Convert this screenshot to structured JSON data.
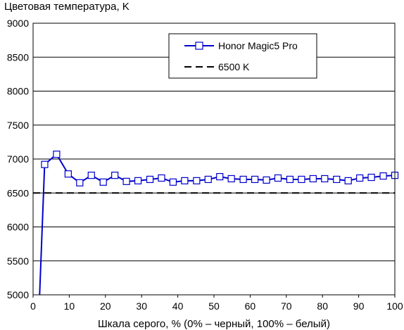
{
  "chart_data": {
    "type": "line",
    "title": "",
    "ylabel": "Цветовая температура, K",
    "xlabel": "Шкала серого, % (0% – черный, 100% – белый)",
    "xlim": [
      0,
      100
    ],
    "ylim": [
      5000,
      9000
    ],
    "x_ticks": [
      0,
      10,
      20,
      30,
      40,
      50,
      60,
      70,
      80,
      90,
      100
    ],
    "y_ticks": [
      5000,
      5500,
      6000,
      6500,
      7000,
      7500,
      8000,
      8500,
      9000
    ],
    "grid": "horizontal",
    "legend_position": "top-right",
    "series": [
      {
        "name": "Honor Magic5 Pro",
        "color": "#0000cc",
        "marker": "open-square",
        "x": [
          1.8,
          3.2,
          6.5,
          9.7,
          12.9,
          16.1,
          19.4,
          22.6,
          25.8,
          29.0,
          32.3,
          35.5,
          38.7,
          41.9,
          45.2,
          48.4,
          51.6,
          54.8,
          58.1,
          61.3,
          64.5,
          67.7,
          71.0,
          74.2,
          77.4,
          80.6,
          83.9,
          87.1,
          90.3,
          93.5,
          96.8,
          100
        ],
        "y": [
          5000,
          6920,
          7070,
          6780,
          6650,
          6760,
          6660,
          6760,
          6670,
          6680,
          6700,
          6720,
          6660,
          6680,
          6680,
          6700,
          6740,
          6710,
          6700,
          6700,
          6690,
          6720,
          6700,
          6700,
          6710,
          6710,
          6700,
          6680,
          6720,
          6730,
          6750,
          6760
        ],
        "marker_from_index": 1
      },
      {
        "name": "6500 K",
        "color": "#000000",
        "style": "dashed",
        "x": [
          0,
          100
        ],
        "y": [
          6500,
          6500
        ]
      }
    ]
  }
}
